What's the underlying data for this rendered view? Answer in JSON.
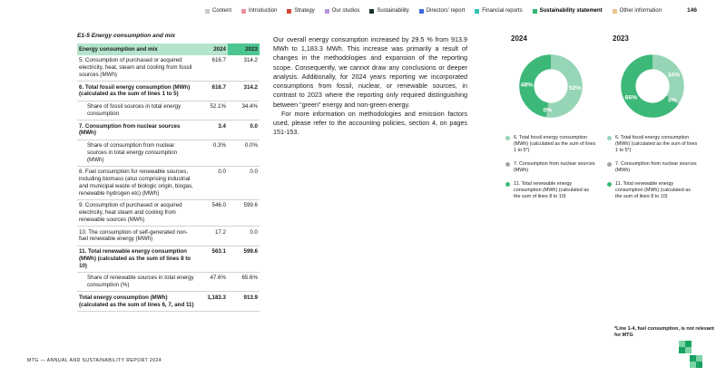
{
  "page": {
    "number": "146",
    "footer_text": "MTG — ANNUAL AND SUSTAINABILITY REPORT 2024"
  },
  "nav": {
    "items": [
      {
        "label": "Content",
        "color": "#c8c8c8",
        "active": false
      },
      {
        "label": "Introduction",
        "color": "#ef8f9f",
        "active": false
      },
      {
        "label": "Strategy",
        "color": "#d9473a",
        "active": false
      },
      {
        "label": "Our studios",
        "color": "#b793dd",
        "active": false
      },
      {
        "label": "Sustainability",
        "color": "#14352b",
        "active": false
      },
      {
        "label": "Directors' report",
        "color": "#3a6bdc",
        "active": false
      },
      {
        "label": "Financial reports",
        "color": "#2fc4b2",
        "active": false
      },
      {
        "label": "Sustainability statement",
        "color": "#2eb872",
        "active": true
      },
      {
        "label": "Other information",
        "color": "#eec08e",
        "active": false
      }
    ]
  },
  "table": {
    "title": "E1-5 Energy consumption and mix",
    "header": {
      "label": "Energy consumption and mix",
      "year1": "2024",
      "year2": "2023"
    },
    "rows": [
      {
        "label": "5. Consumption of purchased or acquired electricity, heat, steam and cooling from fossil sources (MWh)",
        "v2024": "616.7",
        "v2023": "314.2",
        "bold": false,
        "indent": false
      },
      {
        "label": "6. Total fossil energy consumption (MWh) (calculated as the sum of lines 1 to 5)",
        "v2024": "616.7",
        "v2023": "314.2",
        "bold": true,
        "indent": false
      },
      {
        "label": "Share of fossil sources in total energy consumption",
        "v2024": "52.1%",
        "v2023": "34.4%",
        "bold": false,
        "indent": true
      },
      {
        "label": "7. Consumption from nuclear sources (MWh)",
        "v2024": "3.4",
        "v2023": "0.0",
        "bold": true,
        "indent": false
      },
      {
        "label": "Share of consumption from nuclear sources in total energy consumption (MWh)",
        "v2024": "0.3%",
        "v2023": "0.0%",
        "bold": false,
        "indent": true
      },
      {
        "label": "8. Fuel consumption for renewable sources, including biomass (also comprising industrial and municipal waste of biologic origin, biogas, renewable hydrogen etc) (MWh)",
        "v2024": "0.0",
        "v2023": "0.0",
        "bold": false,
        "indent": false
      },
      {
        "label": "9. Consumption of purchased or acquired electricity, heat steam and cooling from renewable sources (MWh)",
        "v2024": "546.0",
        "v2023": "599.6",
        "bold": false,
        "indent": false
      },
      {
        "label": "10. The consumption of self-generated non-fuel renewable energy (MWh)",
        "v2024": "17.2",
        "v2023": "0.0",
        "bold": false,
        "indent": false
      },
      {
        "label": "11. Total renewable energy consumption (MWh) (calculated as the sum of lines 8 to 10)",
        "v2024": "563.1",
        "v2023": "599.6",
        "bold": true,
        "indent": false
      },
      {
        "label": "Share of renewable sources in total energy consumption (%)",
        "v2024": "47.6%",
        "v2023": "65.6%",
        "bold": false,
        "indent": true
      },
      {
        "label": "Total energy consumption (MWh) (calculated as the sum of lines 6, 7, and 11)",
        "v2024": "1,183.3",
        "v2023": "913.9",
        "bold": true,
        "indent": false
      }
    ]
  },
  "body": {
    "para1": "Our overall energy consumption increased by 29.5 % from 913.9 MWh to 1,183.3 MWh. This increase was primarily a result of changes in the methodologies and expansion of the reporting scope. Consequently, we cannot draw any conclusions or deeper analysis. Additionally, for 2024 years reporting we incorporated consumptions from fossil, nuclear, or renewable sources, in contrast to 2023 where the reporting only required distinguishing between “green” energy and non-green energy.",
    "para2": "For more information on methodologies and emission factors used, please refer to the accounting policies, section 4, on pages 151-153."
  },
  "chart_data": [
    {
      "type": "pie",
      "title": "2024",
      "unit": "%",
      "keys": [
        "fossil",
        "nuclear",
        "renewable"
      ],
      "labels": [
        "6. Total fossil energy consumption (MWh) (calculated as the sum of lines 1 to 5*)",
        "7. Consumption from nuclear sources (MWh)",
        "11. Total renewable energy consumption (MWh) (calculated as the sum of lines 8 to 10)"
      ],
      "values": [
        52.1,
        0.3,
        47.6
      ],
      "display_labels": [
        "52%",
        "0%",
        "48%"
      ],
      "colors": [
        "#96d5b6",
        "#a0a7a7",
        "#3cb878"
      ],
      "legend_position": "bottom"
    },
    {
      "type": "pie",
      "title": "2023",
      "unit": "%",
      "keys": [
        "fossil",
        "nuclear",
        "renewable"
      ],
      "labels": [
        "6. Total fossil energy consumption (MWh) (calculated as the sum of lines 1 to 5*)",
        "7. Consumption from nuclear sources (MWh)",
        "11. Total renewable energy consumption (MWh) (calculated as the sum of lines 8 to 10)"
      ],
      "values": [
        34.4,
        0.0,
        65.6
      ],
      "display_labels": [
        "34%",
        "0%",
        "66%"
      ],
      "colors": [
        "#96d5b6",
        "#a0a7a7",
        "#3cb878"
      ],
      "legend_position": "bottom"
    }
  ],
  "footnote": "*Line 1-4, fuel consumption, is not relevant for MTG",
  "colors": {
    "accent_green": "#2eb872",
    "table_header_green": "#b4e5cc",
    "table_header_highlight": "#4cc690",
    "fossil": "#96d5b6",
    "nuclear": "#a0a7a7",
    "renewable": "#3cb878",
    "logo_light": "#7bd3a6",
    "logo_dark": "#17a262"
  }
}
